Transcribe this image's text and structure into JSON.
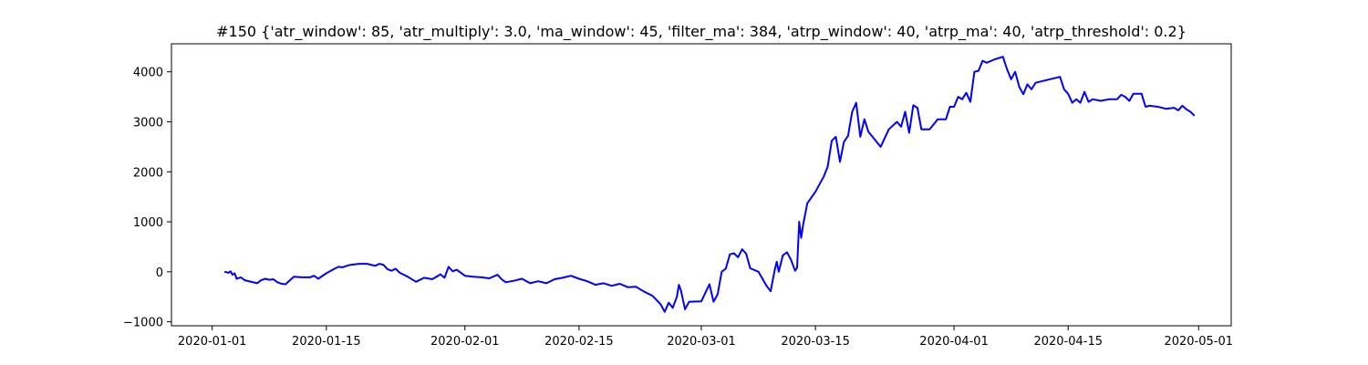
{
  "chart_data": {
    "type": "line",
    "title": "#150 {'atr_window': 85, 'atr_multiply': 3.0, 'ma_window': 45, 'filter_ma': 384, 'atrp_window': 40, 'atrp_ma': 40, 'atrp_threshold': 0.2}",
    "xlabel": "",
    "ylabel": "",
    "xlim": [
      "2019-12-27",
      "2020-05-05"
    ],
    "ylim": [
      -1080,
      4560
    ],
    "grid": false,
    "x_ticks": [
      "2020-01-01",
      "2020-01-15",
      "2020-02-01",
      "2020-02-15",
      "2020-03-01",
      "2020-03-15",
      "2020-04-01",
      "2020-04-15",
      "2020-05-01"
    ],
    "y_ticks": [
      -1000,
      0,
      1000,
      2000,
      3000,
      4000
    ],
    "series": [
      {
        "color": "#0000ff",
        "points": [
          [
            "2020-01-02T12:00",
            0
          ],
          [
            "2020-01-03T00:00",
            -20
          ],
          [
            "2020-01-03T06:00",
            10
          ],
          [
            "2020-01-03T12:00",
            -60
          ],
          [
            "2020-01-03T18:00",
            -30
          ],
          [
            "2020-01-04T00:00",
            -140
          ],
          [
            "2020-01-04T12:00",
            -110
          ],
          [
            "2020-01-05T00:00",
            -170
          ],
          [
            "2020-01-06T12:00",
            -230
          ],
          [
            "2020-01-07T00:00",
            -170
          ],
          [
            "2020-01-07T12:00",
            -140
          ],
          [
            "2020-01-08T00:00",
            -160
          ],
          [
            "2020-01-08T12:00",
            -150
          ],
          [
            "2020-01-09T00:00",
            -210
          ],
          [
            "2020-01-09T12:00",
            -240
          ],
          [
            "2020-01-10T00:00",
            -250
          ],
          [
            "2020-01-11T00:00",
            -100
          ],
          [
            "2020-01-12T00:00",
            -110
          ],
          [
            "2020-01-13T00:00",
            -110
          ],
          [
            "2020-01-13T12:00",
            -80
          ],
          [
            "2020-01-14T00:00",
            -140
          ],
          [
            "2020-01-15T00:00",
            -30
          ],
          [
            "2020-01-16T00:00",
            60
          ],
          [
            "2020-01-16T12:00",
            100
          ],
          [
            "2020-01-17T00:00",
            90
          ],
          [
            "2020-01-17T12:00",
            120
          ],
          [
            "2020-01-18T00:00",
            140
          ],
          [
            "2020-01-19T00:00",
            160
          ],
          [
            "2020-01-20T00:00",
            160
          ],
          [
            "2020-01-21T00:00",
            120
          ],
          [
            "2020-01-21T12:00",
            160
          ],
          [
            "2020-01-22T00:00",
            140
          ],
          [
            "2020-01-22T12:00",
            50
          ],
          [
            "2020-01-23T00:00",
            20
          ],
          [
            "2020-01-23T12:00",
            60
          ],
          [
            "2020-01-24T00:00",
            -20
          ],
          [
            "2020-01-25T00:00",
            -100
          ],
          [
            "2020-01-26T00:00",
            -200
          ],
          [
            "2020-01-27T00:00",
            -120
          ],
          [
            "2020-01-28T00:00",
            -150
          ],
          [
            "2020-01-29T00:00",
            -50
          ],
          [
            "2020-01-29T12:00",
            -120
          ],
          [
            "2020-01-30T00:00",
            100
          ],
          [
            "2020-01-30T12:00",
            10
          ],
          [
            "2020-01-31T00:00",
            40
          ],
          [
            "2020-02-01T00:00",
            -80
          ],
          [
            "2020-02-02T00:00",
            -100
          ],
          [
            "2020-02-03T00:00",
            -110
          ],
          [
            "2020-02-04T00:00",
            -130
          ],
          [
            "2020-02-05T00:00",
            -60
          ],
          [
            "2020-02-05T12:00",
            -150
          ],
          [
            "2020-02-06T00:00",
            -210
          ],
          [
            "2020-02-07T00:00",
            -180
          ],
          [
            "2020-02-08T00:00",
            -140
          ],
          [
            "2020-02-09T00:00",
            -230
          ],
          [
            "2020-02-10T00:00",
            -190
          ],
          [
            "2020-02-11T00:00",
            -230
          ],
          [
            "2020-02-12T00:00",
            -150
          ],
          [
            "2020-02-13T00:00",
            -120
          ],
          [
            "2020-02-14T00:00",
            -80
          ],
          [
            "2020-02-15T00:00",
            -140
          ],
          [
            "2020-02-16T00:00",
            -190
          ],
          [
            "2020-02-17T00:00",
            -260
          ],
          [
            "2020-02-18T00:00",
            -230
          ],
          [
            "2020-02-19T00:00",
            -280
          ],
          [
            "2020-02-20T00:00",
            -240
          ],
          [
            "2020-02-21T00:00",
            -310
          ],
          [
            "2020-02-22T00:00",
            -300
          ],
          [
            "2020-02-23T00:00",
            -400
          ],
          [
            "2020-02-24T00:00",
            -480
          ],
          [
            "2020-02-25T00:00",
            -650
          ],
          [
            "2020-02-25T12:00",
            -800
          ],
          [
            "2020-02-26T00:00",
            -620
          ],
          [
            "2020-02-26T12:00",
            -720
          ],
          [
            "2020-02-27T00:00",
            -500
          ],
          [
            "2020-02-27T06:00",
            -260
          ],
          [
            "2020-02-27T12:00",
            -380
          ],
          [
            "2020-02-28T00:00",
            -750
          ],
          [
            "2020-02-28T12:00",
            -600
          ],
          [
            "2020-03-01T00:00",
            -590
          ],
          [
            "2020-03-02T00:00",
            -250
          ],
          [
            "2020-03-02T12:00",
            -600
          ],
          [
            "2020-03-03T00:00",
            -450
          ],
          [
            "2020-03-03T12:00",
            0
          ],
          [
            "2020-03-04T00:00",
            60
          ],
          [
            "2020-03-04T12:00",
            350
          ],
          [
            "2020-03-05T00:00",
            370
          ],
          [
            "2020-03-05T12:00",
            290
          ],
          [
            "2020-03-06T00:00",
            450
          ],
          [
            "2020-03-06T12:00",
            360
          ],
          [
            "2020-03-07T00:00",
            70
          ],
          [
            "2020-03-08T00:00",
            0
          ],
          [
            "2020-03-09T00:00",
            -280
          ],
          [
            "2020-03-09T12:00",
            -390
          ],
          [
            "2020-03-10T00:00",
            30
          ],
          [
            "2020-03-10T06:00",
            200
          ],
          [
            "2020-03-10T12:00",
            0
          ],
          [
            "2020-03-11T00:00",
            330
          ],
          [
            "2020-03-11T12:00",
            390
          ],
          [
            "2020-03-12T00:00",
            240
          ],
          [
            "2020-03-12T12:00",
            20
          ],
          [
            "2020-03-12T18:00",
            80
          ],
          [
            "2020-03-13T00:00",
            1000
          ],
          [
            "2020-03-13T06:00",
            680
          ],
          [
            "2020-03-13T12:00",
            950
          ],
          [
            "2020-03-14T00:00",
            1370
          ],
          [
            "2020-03-15T00:00",
            1600
          ],
          [
            "2020-03-16T00:00",
            1900
          ],
          [
            "2020-03-16T12:00",
            2100
          ],
          [
            "2020-03-17T00:00",
            2620
          ],
          [
            "2020-03-17T12:00",
            2700
          ],
          [
            "2020-03-18T00:00",
            2200
          ],
          [
            "2020-03-18T12:00",
            2600
          ],
          [
            "2020-03-19T00:00",
            2720
          ],
          [
            "2020-03-19T12:00",
            3200
          ],
          [
            "2020-03-20T00:00",
            3380
          ],
          [
            "2020-03-20T12:00",
            2700
          ],
          [
            "2020-03-21T00:00",
            3050
          ],
          [
            "2020-03-21T12:00",
            2800
          ],
          [
            "2020-03-22T00:00",
            2700
          ],
          [
            "2020-03-23T00:00",
            2500
          ],
          [
            "2020-03-24T00:00",
            2850
          ],
          [
            "2020-03-25T00:00",
            3000
          ],
          [
            "2020-03-25T12:00",
            2900
          ],
          [
            "2020-03-26T00:00",
            3200
          ],
          [
            "2020-03-26T12:00",
            2780
          ],
          [
            "2020-03-27T00:00",
            3330
          ],
          [
            "2020-03-27T12:00",
            3280
          ],
          [
            "2020-03-28T00:00",
            2850
          ],
          [
            "2020-03-29T00:00",
            2850
          ],
          [
            "2020-03-30T00:00",
            3050
          ],
          [
            "2020-03-31T00:00",
            3050
          ],
          [
            "2020-03-31T12:00",
            3300
          ],
          [
            "2020-04-01T00:00",
            3300
          ],
          [
            "2020-04-01T12:00",
            3500
          ],
          [
            "2020-04-02T00:00",
            3450
          ],
          [
            "2020-04-02T12:00",
            3580
          ],
          [
            "2020-04-03T00:00",
            3400
          ],
          [
            "2020-04-03T12:00",
            4000
          ],
          [
            "2020-04-04T00:00",
            4020
          ],
          [
            "2020-04-04T12:00",
            4220
          ],
          [
            "2020-04-05T00:00",
            4180
          ],
          [
            "2020-04-06T00:00",
            4250
          ],
          [
            "2020-04-07T00:00",
            4300
          ],
          [
            "2020-04-07T12:00",
            4050
          ],
          [
            "2020-04-08T00:00",
            3850
          ],
          [
            "2020-04-08T12:00",
            4000
          ],
          [
            "2020-04-09T00:00",
            3700
          ],
          [
            "2020-04-09T12:00",
            3550
          ],
          [
            "2020-04-10T00:00",
            3750
          ],
          [
            "2020-04-10T12:00",
            3650
          ],
          [
            "2020-04-11T00:00",
            3780
          ],
          [
            "2020-04-14T00:00",
            3900
          ],
          [
            "2020-04-14T12:00",
            3650
          ],
          [
            "2020-04-15T00:00",
            3560
          ],
          [
            "2020-04-15T12:00",
            3380
          ],
          [
            "2020-04-16T00:00",
            3450
          ],
          [
            "2020-04-16T12:00",
            3380
          ],
          [
            "2020-04-17T00:00",
            3600
          ],
          [
            "2020-04-17T12:00",
            3400
          ],
          [
            "2020-04-18T00:00",
            3450
          ],
          [
            "2020-04-19T00:00",
            3420
          ],
          [
            "2020-04-20T00:00",
            3450
          ],
          [
            "2020-04-21T00:00",
            3450
          ],
          [
            "2020-04-21T12:00",
            3540
          ],
          [
            "2020-04-22T00:00",
            3500
          ],
          [
            "2020-04-22T12:00",
            3420
          ],
          [
            "2020-04-23T00:00",
            3560
          ],
          [
            "2020-04-24T00:00",
            3560
          ],
          [
            "2020-04-24T12:00",
            3300
          ],
          [
            "2020-04-25T00:00",
            3320
          ],
          [
            "2020-04-26T00:00",
            3300
          ],
          [
            "2020-04-27T00:00",
            3260
          ],
          [
            "2020-04-28T00:00",
            3280
          ],
          [
            "2020-04-28T12:00",
            3230
          ],
          [
            "2020-04-29T00:00",
            3320
          ],
          [
            "2020-04-29T12:00",
            3250
          ],
          [
            "2020-04-30T00:00",
            3200
          ],
          [
            "2020-04-30T12:00",
            3120
          ]
        ]
      }
    ]
  }
}
